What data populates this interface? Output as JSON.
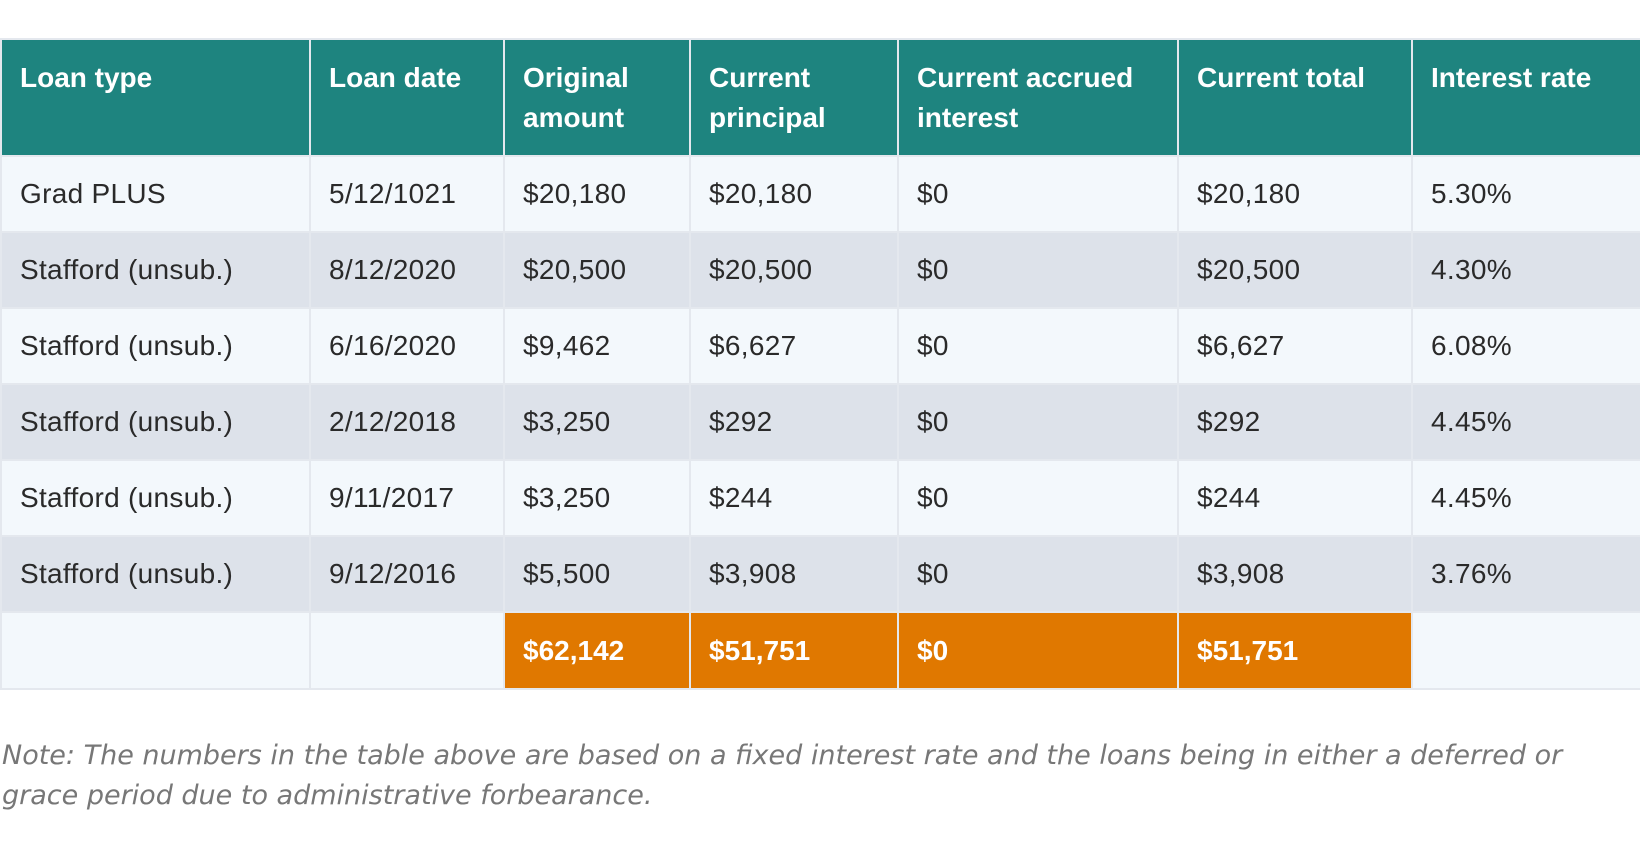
{
  "table": {
    "headers": [
      "Loan type",
      "Loan date",
      "Original amount",
      "Current principal",
      "Current accrued interest",
      "Current total",
      "Interest rate"
    ],
    "rows": [
      [
        "Grad PLUS",
        "5/12/1021",
        "$20,180",
        "$20,180",
        "$0",
        "$20,180",
        "5.30%"
      ],
      [
        "Stafford (unsub.)",
        "8/12/2020",
        "$20,500",
        "$20,500",
        "$0",
        "$20,500",
        "4.30%"
      ],
      [
        "Stafford (unsub.)",
        "6/16/2020",
        "$9,462",
        "$6,627",
        "$0",
        "$6,627",
        "6.08%"
      ],
      [
        "Stafford (unsub.)",
        "2/12/2018",
        "$3,250",
        "$292",
        "$0",
        "$292",
        "4.45%"
      ],
      [
        "Stafford (unsub.)",
        "9/11/2017",
        "$3,250",
        "$244",
        "$0",
        "$244",
        "4.45%"
      ],
      [
        "Stafford (unsub.)",
        "9/12/2016",
        "$5,500",
        "$3,908",
        "$0",
        "$3,908",
        "3.76%"
      ]
    ],
    "totals": [
      "",
      "",
      "$62,142",
      "$51,751",
      "$0",
      "$51,751",
      ""
    ]
  },
  "note": "Note: The numbers in the table above are based on a fixed interest rate and the loans being in either a deferred or grace period due to administrative forbearance.",
  "colors": {
    "header_bg": "#1e847f",
    "row_light": "#f3f8fc",
    "row_dark": "#dde2ea",
    "totals_accent": "#e07800"
  }
}
